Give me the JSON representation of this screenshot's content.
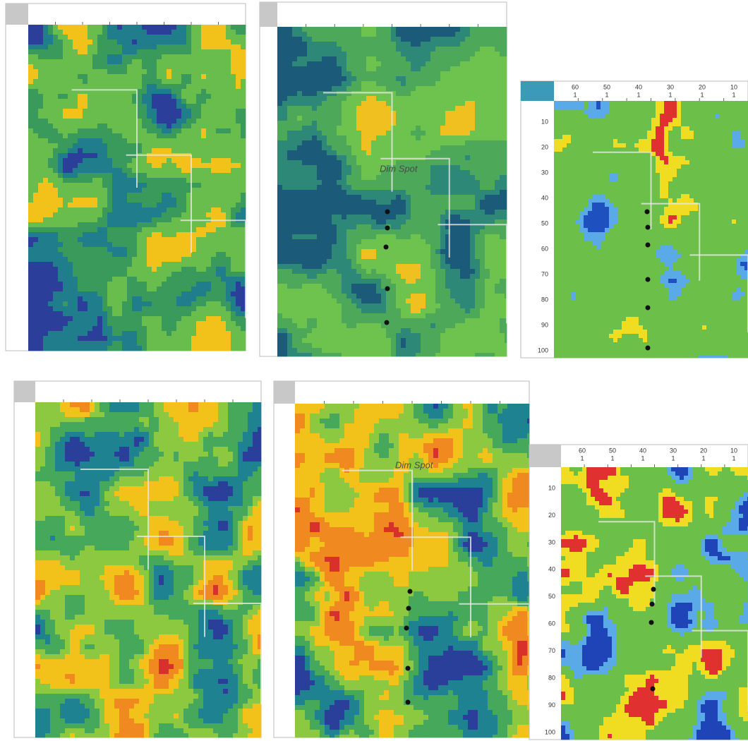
{
  "panel_2": {
    "annotation": "Dim Spot"
  },
  "panel_3": {
    "top_labels": [
      "60",
      "50",
      "40",
      "30",
      "20",
      "10"
    ],
    "top_sublabels": [
      "1",
      "1",
      "1",
      "1",
      "1",
      "1"
    ],
    "left_labels": [
      "10",
      "20",
      "30",
      "40",
      "50",
      "60",
      "70",
      "80",
      "90",
      "100"
    ]
  },
  "panel_5": {
    "annotation": "Dim Spot"
  },
  "panel_6": {
    "top_labels": [
      "60",
      "50",
      "40",
      "30",
      "20",
      "10"
    ],
    "top_sublabels": [
      "1",
      "1",
      "1",
      "1",
      "1",
      "1"
    ],
    "left_labels": [
      "10",
      "20",
      "30",
      "40",
      "50",
      "60",
      "70",
      "80",
      "90",
      "100"
    ]
  }
}
